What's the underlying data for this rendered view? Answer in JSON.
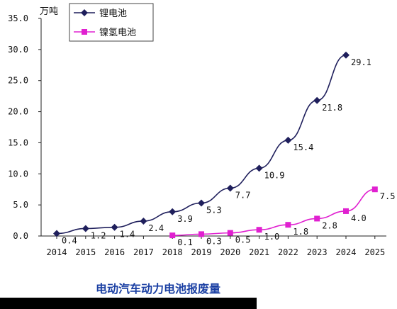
{
  "chart_data": {
    "type": "line",
    "title": "电动汽车动力电池报废量",
    "ylabel": "万吨",
    "xlabel": "",
    "x": [
      "2014",
      "2015",
      "2016",
      "2017",
      "2018",
      "2019",
      "2020",
      "2021",
      "2022",
      "2023",
      "2024",
      "2025"
    ],
    "ylim": [
      0,
      35
    ],
    "yticks": [
      "0.0",
      "5.0",
      "10.0",
      "15.0",
      "20.0",
      "25.0",
      "30.0",
      "35.0"
    ],
    "grid": false,
    "legend_position": "top-left",
    "series": [
      {
        "name": "锂电池",
        "color": "#1f1f5c",
        "marker": "diamond",
        "values": [
          0.4,
          1.2,
          1.4,
          2.4,
          3.9,
          5.3,
          7.7,
          10.9,
          15.4,
          21.8,
          29.1,
          null
        ],
        "labels": [
          "0.4",
          "1.2",
          "1.4",
          "2.4",
          "3.9",
          "5.3",
          "7.7",
          "10.9",
          "15.4",
          "21.8",
          "29.1",
          ""
        ]
      },
      {
        "name": "镍氢电池",
        "color": "#e020d0",
        "marker": "square",
        "values": [
          null,
          null,
          null,
          null,
          0.1,
          0.3,
          0.5,
          1.0,
          1.8,
          2.8,
          4.0,
          7.5
        ],
        "labels": [
          "",
          "",
          "",
          "",
          "0.1",
          "0.3",
          "0.5",
          "1.0",
          "1.8",
          "2.8",
          "4.0",
          "7.5"
        ]
      }
    ]
  }
}
